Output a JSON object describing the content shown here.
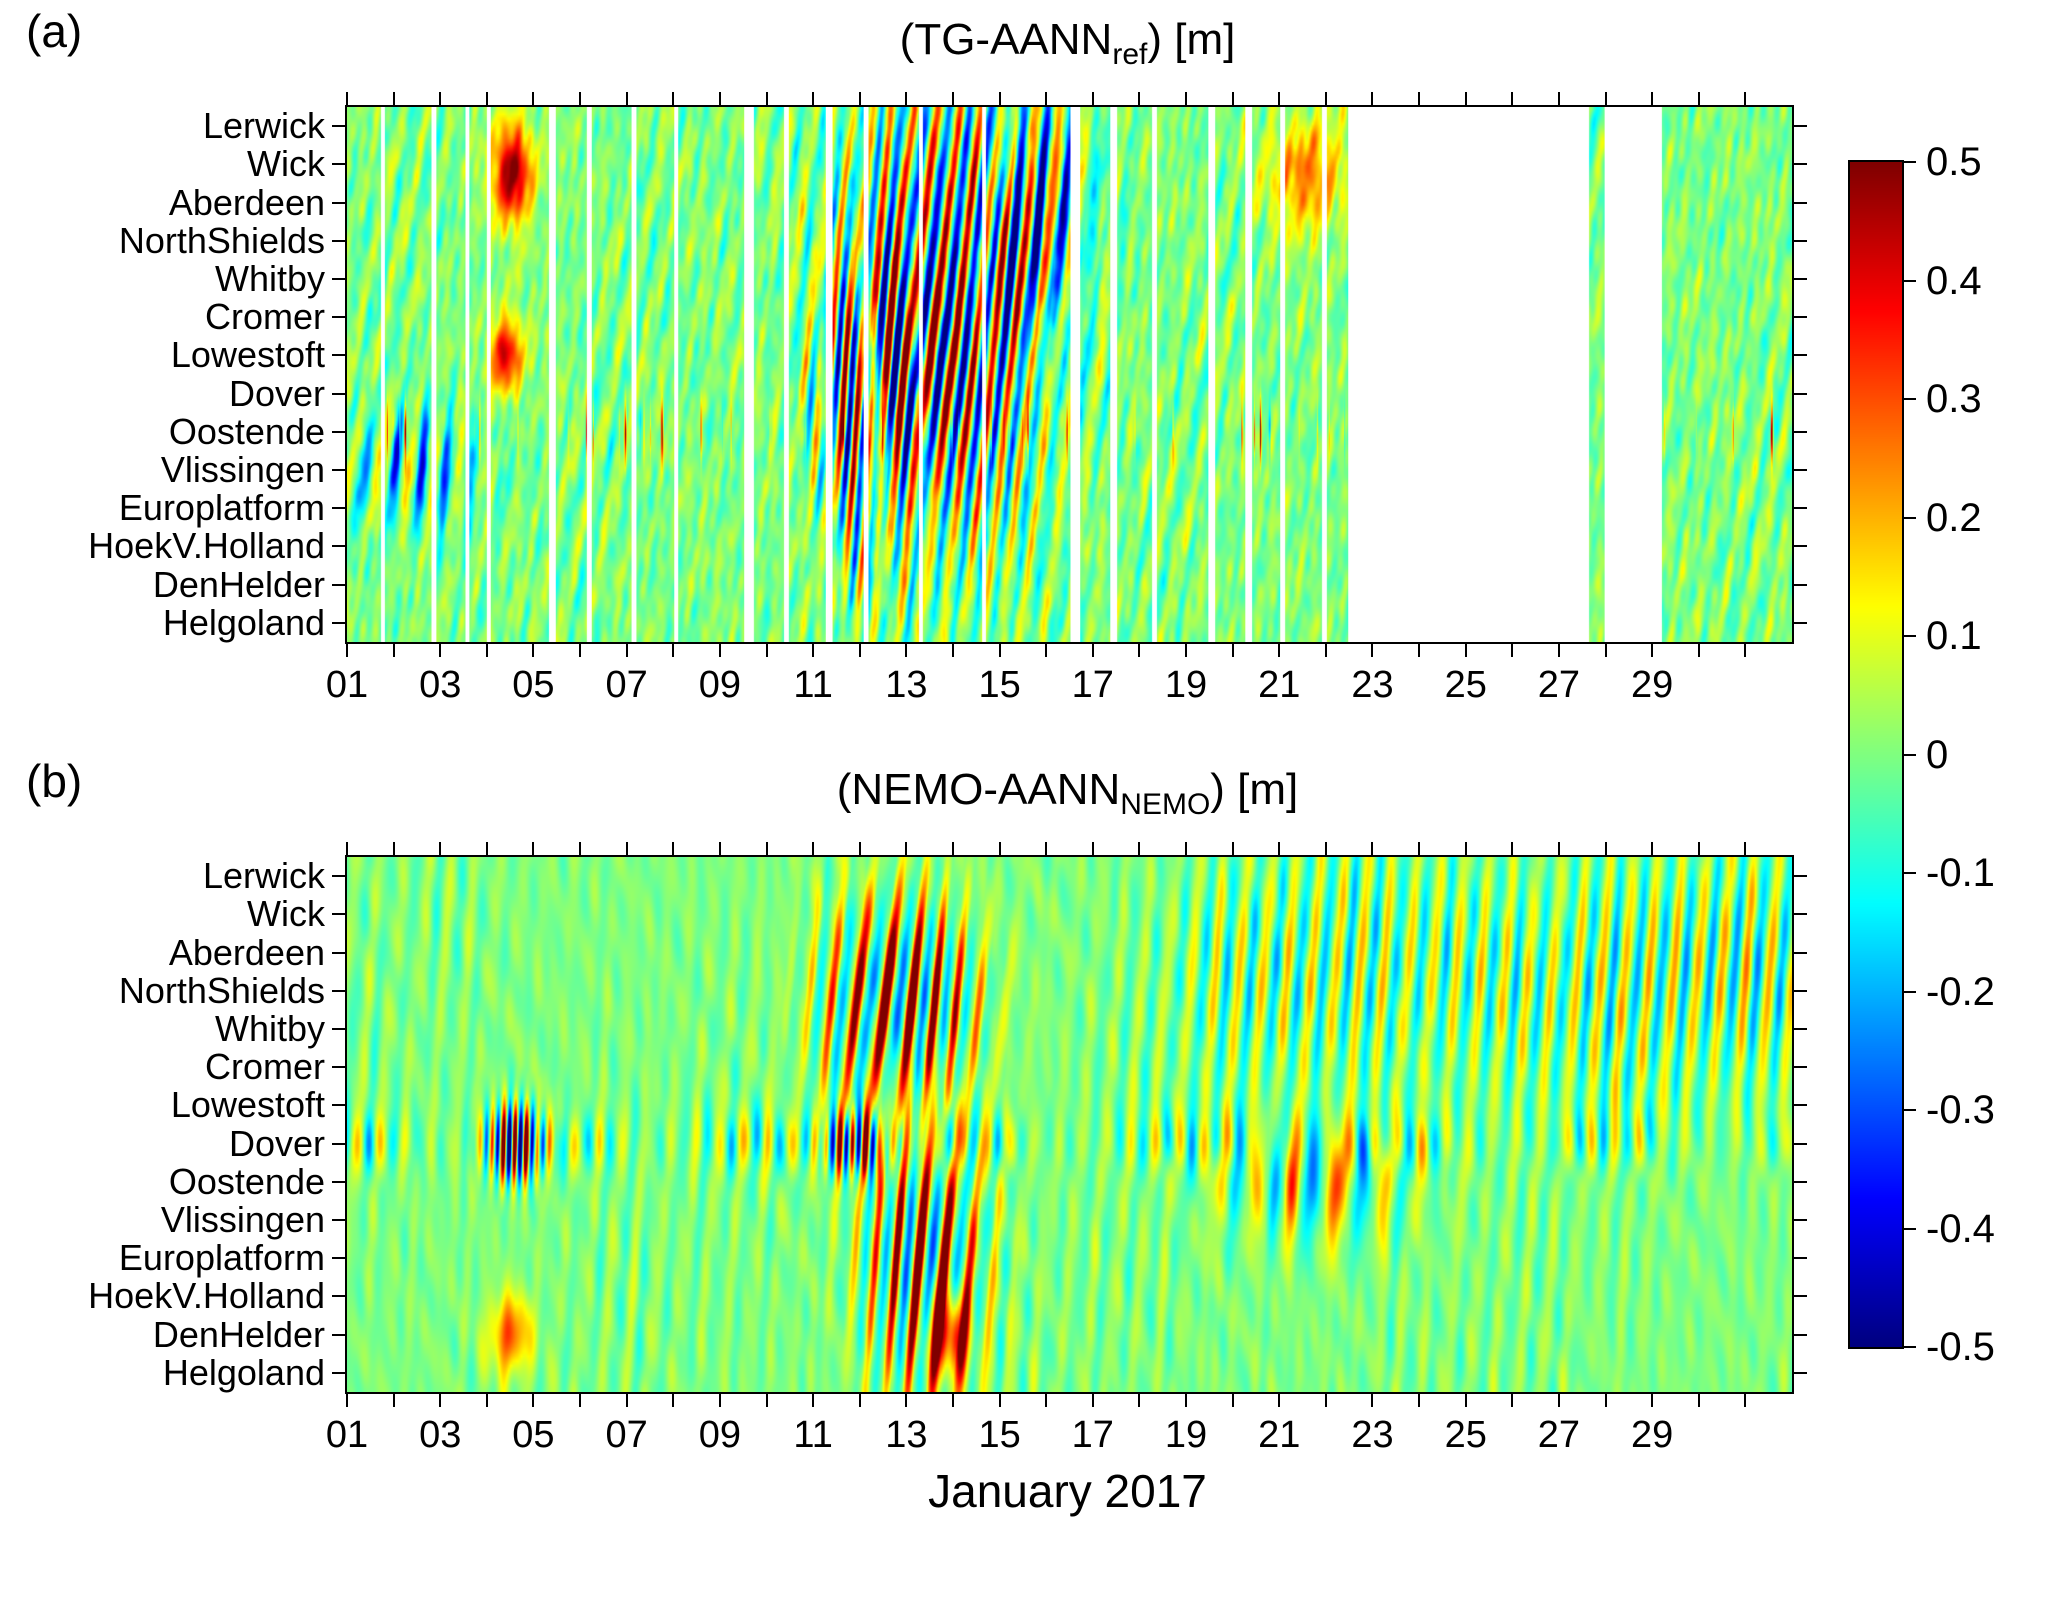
{
  "figure": {
    "panel_a_label": "(a)",
    "panel_b_label": "(b)",
    "x_axis_label": "January 2017",
    "background_color": "#ffffff",
    "text_color": "#000000"
  },
  "colorbar": {
    "colormap": "jet",
    "vmin": -0.5,
    "vmax": 0.5,
    "tick_labels": [
      "0.5",
      "0.4",
      "0.3",
      "0.2",
      "0.1",
      "0",
      "-0.1",
      "-0.2",
      "-0.3",
      "-0.4",
      "-0.5"
    ]
  },
  "chart_data": [
    {
      "type": "heatmap",
      "panel": "a",
      "title": "(TG-AANNref) [m]",
      "title_parts": {
        "pre": "(TG-AANN",
        "sub": "ref",
        "post": ") [m]"
      },
      "ylabel_stations": [
        "Lerwick",
        "Wick",
        "Aberdeen",
        "NorthShields",
        "Whitby",
        "Cromer",
        "Lowestoft",
        "Dover",
        "Oostende",
        "Vlissingen",
        "Europlatform",
        "HoekV.Holland",
        "DenHelder",
        "Helgoland"
      ],
      "x_tick_labels": [
        "01",
        "03",
        "05",
        "07",
        "09",
        "11",
        "13",
        "15",
        "17",
        "19",
        "21",
        "23",
        "25",
        "27",
        "29"
      ],
      "x_tick_days": [
        1,
        3,
        5,
        7,
        9,
        11,
        13,
        15,
        17,
        19,
        21,
        23,
        25,
        27,
        29
      ],
      "x_range_days": [
        1,
        32
      ],
      "value_units": "m",
      "value_range": [
        -0.5,
        0.5
      ],
      "missing_data_gaps_days": [
        [
          1.72,
          1.82
        ],
        [
          2.82,
          2.92
        ],
        [
          3.55,
          3.62
        ],
        [
          4.0,
          4.08
        ],
        [
          5.33,
          5.47
        ],
        [
          6.15,
          6.26
        ],
        [
          7.1,
          7.2
        ],
        [
          8.02,
          8.1
        ],
        [
          9.52,
          9.72
        ],
        [
          10.38,
          10.47
        ],
        [
          11.28,
          11.42
        ],
        [
          12.08,
          12.18
        ],
        [
          13.28,
          13.36
        ],
        [
          14.62,
          14.7
        ],
        [
          16.52,
          16.72
        ],
        [
          17.38,
          17.52
        ],
        [
          18.28,
          18.38
        ],
        [
          19.48,
          19.62
        ],
        [
          20.28,
          20.42
        ],
        [
          21.02,
          21.12
        ],
        [
          21.92,
          22.02
        ],
        [
          22.48,
          27.65
        ],
        [
          27.98,
          29.2
        ]
      ],
      "features": [
        {
          "type": "background_noise",
          "amp": 0.065,
          "freq_scale": 1.7,
          "station_freq": 1.2,
          "seed": 11
        },
        {
          "type": "tidal_stripes",
          "amp": 0.06,
          "period_days": 0.5175,
          "station_phase": 2.1,
          "phase": 0.4,
          "seed": 12
        },
        {
          "type": "event_streaks",
          "t_center": 13.8,
          "t_sigma": 1.7,
          "s_center": 5,
          "s_sigma": 4.5,
          "period_days": 0.45,
          "station_phase": 1.3,
          "pos_amp": 0.6,
          "neg_amp": 0.55,
          "phase": 0.0,
          "seed": 13
        },
        {
          "type": "event_streaks",
          "t_center": 12.2,
          "t_sigma": 0.7,
          "s_center": 7,
          "s_sigma": 3.0,
          "period_days": 0.3,
          "station_phase": 1.0,
          "pos_amp": 0.5,
          "neg_amp": 0.45,
          "phase": 1.2,
          "seed": 14
        },
        {
          "type": "row_spikes",
          "s_center": 8,
          "s_sigma": 0.5,
          "amp": 0.5,
          "threshold": 0.6,
          "neg_threshold": 0.95,
          "freq_scale": 2.2,
          "seed": 15
        },
        {
          "type": "blob",
          "t_center": 4.55,
          "t_sigma": 0.3,
          "s_center": 1.2,
          "s_sigma": 0.9,
          "amp": 0.5
        },
        {
          "type": "blob",
          "t_center": 21.6,
          "t_sigma": 0.55,
          "s_center": 1.3,
          "s_sigma": 1.0,
          "amp": 0.27
        },
        {
          "type": "blob",
          "t_center": 4.4,
          "t_sigma": 0.25,
          "s_center": 6.0,
          "s_sigma": 0.7,
          "amp": 0.42
        },
        {
          "type": "event_streaks",
          "t_center": 2.6,
          "t_sigma": 1.0,
          "s_center": 9,
          "s_sigma": 1.1,
          "period_days": 0.6,
          "station_phase": 0.8,
          "pos_amp": 0.15,
          "neg_amp": 0.45,
          "phase": 2.1,
          "seed": 16
        },
        {
          "type": "event_streaks",
          "t_center": 15.9,
          "t_sigma": 0.8,
          "s_center": 2.5,
          "s_sigma": 2.5,
          "period_days": 0.6,
          "station_phase": 0.7,
          "pos_amp": 0.2,
          "neg_amp": 0.5,
          "phase": 0.3,
          "seed": 17
        }
      ]
    },
    {
      "type": "heatmap",
      "panel": "b",
      "title": "(NEMO-AANNNEMO) [m]",
      "title_parts": {
        "pre": "(NEMO-AANN",
        "sub": "NEMO",
        "post": ") [m]"
      },
      "xlabel": "January 2017",
      "ylabel_stations": [
        "Lerwick",
        "Wick",
        "Aberdeen",
        "NorthShields",
        "Whitby",
        "Cromer",
        "Lowestoft",
        "Dover",
        "Oostende",
        "Vlissingen",
        "Europlatform",
        "HoekV.Holland",
        "DenHelder",
        "Helgoland"
      ],
      "x_tick_labels": [
        "01",
        "03",
        "05",
        "07",
        "09",
        "11",
        "13",
        "15",
        "17",
        "19",
        "21",
        "23",
        "25",
        "27",
        "29"
      ],
      "x_tick_days": [
        1,
        3,
        5,
        7,
        9,
        11,
        13,
        15,
        17,
        19,
        21,
        23,
        25,
        27,
        29
      ],
      "x_range_days": [
        1,
        32
      ],
      "value_units": "m",
      "value_range": [
        -0.5,
        0.5
      ],
      "missing_data_gaps_days": [],
      "features": [
        {
          "type": "background_noise",
          "amp": 0.04,
          "freq_scale": 1.1,
          "station_freq": 0.5,
          "seed": 21
        },
        {
          "type": "tidal_stripes",
          "amp": 0.055,
          "period_days": 0.5175,
          "station_phase": 0.85,
          "phase": 0.0,
          "seed": 22
        },
        {
          "type": "event_streaks",
          "t_center": 12.9,
          "t_sigma": 1.15,
          "s_center": 3.2,
          "s_sigma": 2.0,
          "period_days": 0.53,
          "station_phase": 1.05,
          "pos_amp": 0.85,
          "neg_amp": 0.32,
          "phase": 0.5,
          "seed": 23
        },
        {
          "type": "event_streaks",
          "t_center": 13.4,
          "t_sigma": 0.85,
          "s_center": 10,
          "s_sigma": 2.6,
          "period_days": 0.5,
          "station_phase": 0.9,
          "pos_amp": 0.8,
          "neg_amp": 0.3,
          "phase": 1.0,
          "seed": 24
        },
        {
          "type": "event_streaks",
          "t_center": 4.6,
          "t_sigma": 0.4,
          "s_center": 7,
          "s_sigma": 0.65,
          "period_days": 0.26,
          "station_phase": 0.5,
          "pos_amp": 0.9,
          "neg_amp": 0.8,
          "phase": 0.0,
          "seed": 25
        },
        {
          "type": "event_streaks",
          "t_center": 11.9,
          "t_sigma": 0.5,
          "s_center": 7,
          "s_sigma": 0.6,
          "period_days": 0.3,
          "station_phase": 0.5,
          "pos_amp": 0.65,
          "neg_amp": 0.55,
          "phase": 1.0,
          "seed": 26
        },
        {
          "type": "row_oscillation",
          "s_center": 7,
          "s_sigma": 0.55,
          "amp": 0.17,
          "period_days": 0.52,
          "seed": 27
        },
        {
          "type": "late_oscillation",
          "t_start": 19,
          "ramp": 1.2,
          "s_center": 2.6,
          "s_sigma": 2.4,
          "amp": 0.17,
          "period_days": 0.5175,
          "station_phase": 0.8
        },
        {
          "type": "blob",
          "t_center": 13.9,
          "t_sigma": 0.3,
          "s_center": 12,
          "s_sigma": 0.8,
          "amp": 0.45
        },
        {
          "type": "blob",
          "t_center": 4.5,
          "t_sigma": 0.3,
          "s_center": 12,
          "s_sigma": 0.7,
          "amp": 0.3
        },
        {
          "type": "event_streaks",
          "t_center": 21.8,
          "t_sigma": 1.5,
          "s_center": 8,
          "s_sigma": 1.2,
          "period_days": 0.9,
          "station_phase": 0.4,
          "pos_amp": 0.35,
          "neg_amp": 0.25,
          "phase": 0.0,
          "seed": 28
        }
      ]
    }
  ]
}
